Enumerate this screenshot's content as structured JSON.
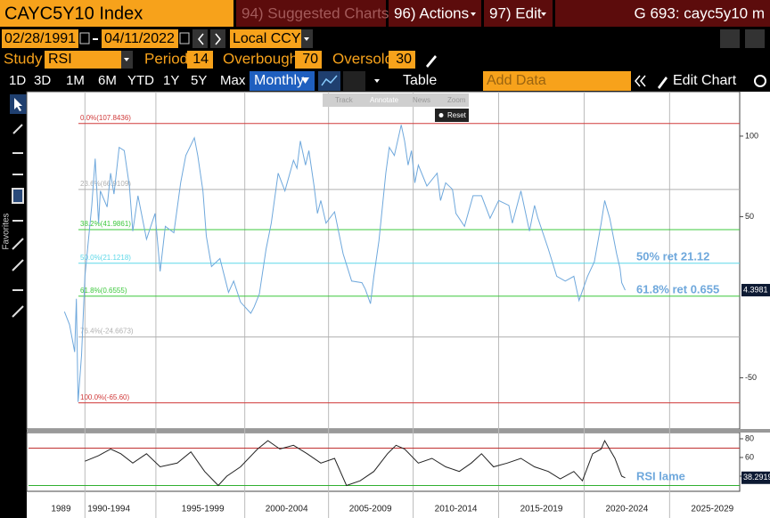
{
  "header": {
    "ticker": "CAYC5Y10 Index",
    "suggested": "94) Suggested Charts",
    "actions": "96) Actions",
    "edit": "97) Edit",
    "screen": "G 693: cayc5y10 m"
  },
  "range": {
    "start": "02/28/1991",
    "end": "04/11/2022",
    "currency": "Local CCY"
  },
  "study": {
    "label": "Study",
    "name": "RSI",
    "period_label": "Period",
    "period": 14,
    "overbought_label": "Overbought",
    "overbought": 70,
    "oversold_label": "Oversold",
    "oversold": 30
  },
  "toolbar": {
    "periods": [
      "1D",
      "3D",
      "1M",
      "6M",
      "YTD",
      "1Y",
      "5Y",
      "Max"
    ],
    "frequency": "Monthly",
    "table": "Table",
    "add_data": "Add Data",
    "edit_chart": "Edit Chart"
  },
  "tools": {
    "track": "Track",
    "annotate": "Annotate",
    "news": "News",
    "zoom": "Zoom",
    "reset": "Reset"
  },
  "sidebar": {
    "favorites": "Favorites"
  },
  "chart_data": [
    {
      "type": "line",
      "color": "#6fa8dc",
      "x": [
        1989.5,
        1989.8,
        1990.1,
        1990.2,
        1990.3,
        1990.5,
        1990.7,
        1991.1,
        1991.3,
        1991.5,
        1991.6,
        1992.0,
        1992.2,
        1992.4,
        1992.7,
        1993.0,
        1993.3,
        1993.5,
        1993.8,
        1994.3,
        1994.8,
        1995.1,
        1995.4,
        1995.9,
        1996.3,
        1996.6,
        1997.1,
        1997.3,
        1997.6,
        1997.8,
        1998.1,
        1998.6,
        1999.1,
        1999.4,
        1999.8,
        2000.4,
        2000.6,
        2000.9,
        2001.3,
        2001.6,
        2002.0,
        2002.4,
        2002.9,
        2003.1,
        2003.3,
        2003.6,
        2003.8,
        2004.1,
        2004.3,
        2004.5,
        2004.8,
        2005.3,
        2005.8,
        2006.3,
        2006.9,
        2007.1,
        2007.4,
        2007.6,
        2007.9,
        2008.3,
        2008.5,
        2008.8,
        2009.2,
        2009.4,
        2009.6,
        2009.8,
        2010.0,
        2010.2,
        2010.7,
        2011.3,
        2011.5,
        2011.8,
        2012.2,
        2012.4,
        2012.9,
        2013.4,
        2013.9,
        2014.4,
        2014.9,
        2015.5,
        2015.7,
        2016.2,
        2016.7,
        2017.0,
        2017.2,
        2017.8,
        2018.3,
        2018.8,
        2019.3,
        2019.6,
        2020.1,
        2020.5,
        2020.9,
        2021.1,
        2021.4,
        2021.8,
        2022.0,
        2022.1,
        2022.3
      ],
      "values": [
        -9,
        -17,
        -34,
        -1,
        -65,
        -36,
        13,
        57,
        86,
        46,
        66,
        56,
        77,
        64,
        93,
        91,
        69,
        41,
        63,
        36,
        52,
        16,
        44,
        40,
        71,
        88,
        99,
        88,
        66,
        38,
        19,
        24,
        3,
        10,
        -3,
        -10,
        -6,
        2,
        30,
        46,
        77,
        66,
        85,
        80,
        97,
        82,
        91,
        69,
        52,
        60,
        46,
        53,
        27,
        10,
        9,
        5,
        -4,
        13,
        35,
        77,
        93,
        88,
        107,
        97,
        82,
        91,
        71,
        82,
        69,
        77,
        60,
        71,
        67,
        52,
        44,
        63,
        63,
        49,
        60,
        57,
        46,
        66,
        41,
        57,
        49,
        30,
        13,
        10,
        13,
        -2,
        13,
        22,
        46,
        60,
        49,
        27,
        18,
        9,
        4.3981
      ],
      "xlim": [
        1987.4,
        2029.0
      ],
      "ylim": [
        -80.7,
        118.2
      ],
      "yticks": [
        100,
        50,
        -50
      ],
      "xticks": [
        {
          "value": 1989.3,
          "label": "1989"
        },
        {
          "value": 1992.1,
          "label": "1990-1994"
        },
        {
          "value": 1997.6,
          "label": "1995-1999"
        },
        {
          "value": 2002.5,
          "label": "2000-2004"
        },
        {
          "value": 2007.4,
          "label": "2005-2009"
        },
        {
          "value": 2012.4,
          "label": "2010-2014"
        },
        {
          "value": 2017.4,
          "label": "2015-2019"
        },
        {
          "value": 2022.4,
          "label": "2020-2024"
        },
        {
          "value": 2027.4,
          "label": "2025-2029"
        }
      ],
      "levels": [
        {
          "label": "0.0%(107.8436)",
          "value": 107.8436,
          "color": "#d03a3a"
        },
        {
          "label": "23.6%(66.9109)",
          "value": 66.9109,
          "color": "#b0b0b0"
        },
        {
          "label": "38.2%(41.9861)",
          "value": 41.9861,
          "color": "#3cc83c"
        },
        {
          "label": "50.0%(21.1218)",
          "value": 21.1218,
          "color": "#5ed8e8"
        },
        {
          "label": "61.8%(0.6555)",
          "value": 0.6555,
          "color": "#3cc83c"
        },
        {
          "label": "76.4%(-24.6673)",
          "value": -24.6673,
          "color": "#b0b0b0"
        },
        {
          "label": "100.0%(-65.60)",
          "value": -65.6,
          "color": "#d03a3a"
        }
      ],
      "annotations": [
        "50% ret 21.12",
        "61.8% ret 0.655"
      ]
    },
    {
      "type": "line",
      "color": "#222222",
      "x": [
        1990.7,
        1991.5,
        1992.2,
        1992.8,
        1993.5,
        1994.3,
        1995.1,
        1996.1,
        1996.9,
        1997.7,
        1998.5,
        1999.0,
        1999.8,
        2000.8,
        2001.4,
        2002.1,
        2002.9,
        2003.7,
        2004.5,
        2005.3,
        2006.0,
        2006.8,
        2007.6,
        2008.4,
        2008.9,
        2009.4,
        2010.2,
        2011.0,
        2011.8,
        2012.6,
        2013.3,
        2013.9,
        2014.6,
        2015.4,
        2016.2,
        2017.0,
        2017.8,
        2018.5,
        2019.3,
        2019.8,
        2020.4,
        2020.9,
        2021.1,
        2021.7,
        2022.1,
        2022.3
      ],
      "values": [
        56,
        62,
        69,
        64,
        54,
        64,
        50,
        54,
        66,
        45,
        30,
        40,
        50,
        69,
        78,
        69,
        73,
        64,
        54,
        59,
        30,
        35,
        45,
        64,
        73,
        69,
        54,
        59,
        50,
        45,
        54,
        64,
        50,
        54,
        59,
        50,
        45,
        37,
        45,
        35,
        64,
        69,
        78,
        59,
        40,
        38.2919
      ],
      "xlim": [
        1987.4,
        2029.0
      ],
      "ylim": [
        23.8,
        87.6
      ],
      "yticks": [
        80,
        60,
        40
      ],
      "annotation": "RSI lame"
    }
  ]
}
